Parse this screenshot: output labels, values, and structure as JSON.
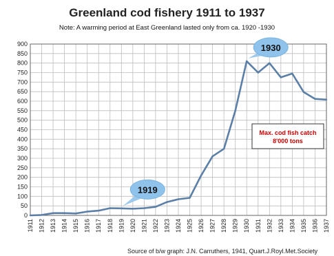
{
  "chart_data": {
    "type": "line",
    "title": "Greenland cod fishery  1911 to 1937",
    "subtitle": "Note: A warming period at East Greenland lasted only from ca. 1920 -1930",
    "source": "Source of b/w graph: J.N. Carruthers, 1941, Quart.J.Royl.Met.Society",
    "x": [
      "1911",
      "1912",
      "1913",
      "1914",
      "1915",
      "1916",
      "1917",
      "1918",
      "1919",
      "1920",
      "1921",
      "1922",
      "1923",
      "1924",
      "1925",
      "1926",
      "1927",
      "1928",
      "1929",
      "1930",
      "1931",
      "1932",
      "1933",
      "1934",
      "1935",
      "1936",
      "1937"
    ],
    "values": [
      0,
      2,
      12,
      12,
      10,
      20,
      25,
      38,
      37,
      35,
      38,
      45,
      70,
      85,
      92,
      210,
      310,
      350,
      550,
      810,
      750,
      800,
      725,
      745,
      648,
      612,
      608
    ],
    "ylim": [
      0,
      900
    ],
    "yticks": [
      0,
      50,
      100,
      150,
      200,
      250,
      300,
      350,
      400,
      450,
      500,
      550,
      600,
      650,
      700,
      750,
      800,
      850,
      900
    ],
    "grid": true,
    "line_color": "#5b7fa6",
    "callouts": [
      {
        "label": "1919",
        "x": "1919",
        "y": 35
      },
      {
        "label": "1930",
        "x": "1930",
        "y": 810
      }
    ],
    "annotation": {
      "line1": "Max. cod fish catch",
      "line2": "8'000 tons",
      "color": "#cc0000"
    }
  }
}
